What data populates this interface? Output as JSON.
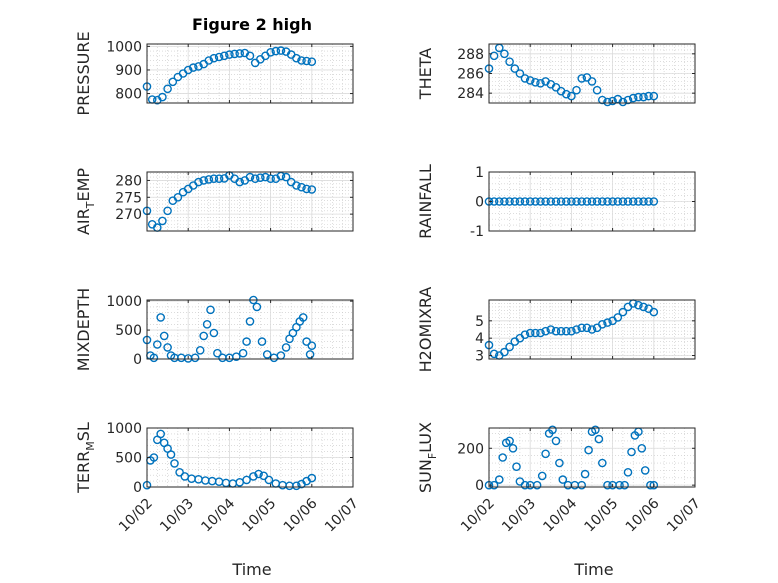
{
  "figure": {
    "title": "Figure 2 high",
    "xlabel": "Time",
    "date_ticks": [
      "10/02",
      "10/03",
      "10/04",
      "10/05",
      "10/06",
      "10/07"
    ],
    "marker_color": "#0072BD",
    "marker": "circle-open"
  },
  "chart_data": [
    {
      "type": "scatter",
      "ylabel": "PRESSURE",
      "title": "Figure 2 high",
      "xlim": [
        "10/02",
        "10/07"
      ],
      "ylim": [
        760,
        1010
      ],
      "yticks": [
        800,
        900,
        1000
      ],
      "grid": true,
      "minor_grid": true,
      "x": [
        "10/02 00:00",
        "10/02 03:00",
        "10/02 06:00",
        "10/02 09:00",
        "10/02 12:00",
        "10/02 15:00",
        "10/02 18:00",
        "10/02 21:00",
        "10/03 00:00",
        "10/03 03:00",
        "10/03 06:00",
        "10/03 09:00",
        "10/03 12:00",
        "10/03 15:00",
        "10/03 18:00",
        "10/03 21:00",
        "10/04 00:00",
        "10/04 03:00",
        "10/04 06:00",
        "10/04 09:00",
        "10/04 12:00",
        "10/04 15:00",
        "10/04 18:00",
        "10/04 21:00",
        "10/05 00:00",
        "10/05 03:00",
        "10/05 06:00",
        "10/05 09:00",
        "10/05 12:00",
        "10/05 15:00",
        "10/05 18:00",
        "10/05 21:00",
        "10/06 00:00"
      ],
      "y": [
        830,
        775,
        772,
        785,
        820,
        850,
        870,
        885,
        900,
        910,
        915,
        925,
        940,
        950,
        955,
        960,
        965,
        968,
        970,
        972,
        960,
        930,
        945,
        960,
        975,
        980,
        982,
        978,
        965,
        950,
        940,
        938,
        935
      ]
    },
    {
      "type": "scatter",
      "ylabel": "THETA",
      "xlim": [
        "10/02",
        "10/07"
      ],
      "ylim": [
        283.0,
        289.0
      ],
      "yticks": [
        284,
        286,
        288
      ],
      "grid": true,
      "minor_grid": true,
      "x": [
        "10/02 00:00",
        "10/02 03:00",
        "10/02 06:00",
        "10/02 09:00",
        "10/02 12:00",
        "10/02 15:00",
        "10/02 18:00",
        "10/02 21:00",
        "10/03 00:00",
        "10/03 03:00",
        "10/03 06:00",
        "10/03 09:00",
        "10/03 12:00",
        "10/03 15:00",
        "10/03 18:00",
        "10/03 21:00",
        "10/04 00:00",
        "10/04 03:00",
        "10/04 06:00",
        "10/04 09:00",
        "10/04 12:00",
        "10/04 15:00",
        "10/04 18:00",
        "10/04 21:00",
        "10/05 00:00",
        "10/05 03:00",
        "10/05 06:00",
        "10/05 09:00",
        "10/05 12:00",
        "10/05 15:00",
        "10/05 18:00",
        "10/05 21:00",
        "10/06 00:00"
      ],
      "y": [
        286.5,
        287.8,
        288.6,
        288.0,
        287.2,
        286.5,
        286.0,
        285.5,
        285.3,
        285.1,
        285.0,
        285.2,
        284.9,
        284.6,
        284.2,
        283.9,
        283.7,
        284.3,
        285.5,
        285.6,
        285.2,
        284.3,
        283.3,
        283.1,
        283.2,
        283.4,
        283.1,
        283.3,
        283.5,
        283.6,
        283.6,
        283.7,
        283.7
      ]
    },
    {
      "type": "scatter",
      "ylabel": "AIR_TEMP",
      "xlim": [
        "10/02",
        "10/07"
      ],
      "ylim": [
        265,
        282.5
      ],
      "yticks": [
        270,
        275,
        280
      ],
      "grid": true,
      "minor_grid": true,
      "x": [
        "10/02 00:00",
        "10/02 03:00",
        "10/02 06:00",
        "10/02 09:00",
        "10/02 12:00",
        "10/02 15:00",
        "10/02 18:00",
        "10/02 21:00",
        "10/03 00:00",
        "10/03 03:00",
        "10/03 06:00",
        "10/03 09:00",
        "10/03 12:00",
        "10/03 15:00",
        "10/03 18:00",
        "10/03 21:00",
        "10/04 00:00",
        "10/04 03:00",
        "10/04 06:00",
        "10/04 09:00",
        "10/04 12:00",
        "10/04 15:00",
        "10/04 18:00",
        "10/04 21:00",
        "10/05 00:00",
        "10/05 03:00",
        "10/05 06:00",
        "10/05 09:00",
        "10/05 12:00",
        "10/05 15:00",
        "10/05 18:00",
        "10/05 21:00",
        "10/06 00:00"
      ],
      "y": [
        271,
        267,
        266,
        268,
        271,
        274,
        275,
        276.5,
        277.5,
        278.5,
        279.5,
        280,
        280.3,
        280.5,
        280.5,
        280.6,
        281.5,
        280.5,
        279.5,
        280,
        281,
        280.5,
        280.8,
        281,
        280.5,
        280.5,
        281.3,
        281,
        279.5,
        278.5,
        278,
        277.5,
        277.3
      ]
    },
    {
      "type": "scatter",
      "ylabel": "RAINFALL",
      "xlim": [
        "10/02",
        "10/07"
      ],
      "ylim": [
        -1,
        1
      ],
      "yticks": [
        -1,
        0,
        1
      ],
      "grid": true,
      "minor_grid": true,
      "x": [
        "10/02 00:00",
        "10/02 03:00",
        "10/02 06:00",
        "10/02 09:00",
        "10/02 12:00",
        "10/02 15:00",
        "10/02 18:00",
        "10/02 21:00",
        "10/03 00:00",
        "10/03 03:00",
        "10/03 06:00",
        "10/03 09:00",
        "10/03 12:00",
        "10/03 15:00",
        "10/03 18:00",
        "10/03 21:00",
        "10/04 00:00",
        "10/04 03:00",
        "10/04 06:00",
        "10/04 09:00",
        "10/04 12:00",
        "10/04 15:00",
        "10/04 18:00",
        "10/04 21:00",
        "10/05 00:00",
        "10/05 03:00",
        "10/05 06:00",
        "10/05 09:00",
        "10/05 12:00",
        "10/05 15:00",
        "10/05 18:00",
        "10/05 21:00",
        "10/06 00:00"
      ],
      "y": [
        0,
        0,
        0,
        0,
        0,
        0,
        0,
        0,
        0,
        0,
        0,
        0,
        0,
        0,
        0,
        0,
        0,
        0,
        0,
        0,
        0,
        0,
        0,
        0,
        0,
        0,
        0,
        0,
        0,
        0,
        0,
        0,
        0
      ]
    },
    {
      "type": "scatter",
      "ylabel": "MIXDEPTH",
      "xlim": [
        "10/02",
        "10/07"
      ],
      "ylim": [
        0,
        1020
      ],
      "yticks": [
        0,
        500,
        1000
      ],
      "grid": true,
      "minor_grid": true,
      "x": [
        "10/02 00:00",
        "10/02 02:00",
        "10/02 04:00",
        "10/02 06:00",
        "10/02 08:00",
        "10/02 10:00",
        "10/02 12:00",
        "10/02 14:00",
        "10/02 16:00",
        "10/02 20:00",
        "10/03 00:00",
        "10/03 04:00",
        "10/03 07:00",
        "10/03 09:00",
        "10/03 11:00",
        "10/03 13:00",
        "10/03 15:00",
        "10/03 17:00",
        "10/03 20:00",
        "10/04 00:00",
        "10/04 04:00",
        "10/04 08:00",
        "10/04 10:00",
        "10/04 12:00",
        "10/04 14:00",
        "10/04 16:00",
        "10/04 19:00",
        "10/04 22:00",
        "10/05 02:00",
        "10/05 06:00",
        "10/05 09:00",
        "10/05 11:00",
        "10/05 13:00",
        "10/05 15:00",
        "10/05 17:00",
        "10/05 19:00",
        "10/05 21:00",
        "10/05 23:00",
        "10/06 00:00"
      ],
      "y": [
        330,
        60,
        20,
        250,
        720,
        400,
        200,
        60,
        20,
        20,
        10,
        20,
        150,
        400,
        600,
        850,
        450,
        100,
        20,
        20,
        40,
        100,
        300,
        650,
        1020,
        900,
        300,
        80,
        20,
        60,
        200,
        350,
        450,
        550,
        650,
        720,
        300,
        80,
        230
      ]
    },
    {
      "type": "scatter",
      "ylabel": "H2OMIXRA",
      "xlim": [
        "10/02",
        "10/07"
      ],
      "ylim": [
        2.8,
        6.2
      ],
      "yticks": [
        3,
        4,
        5
      ],
      "grid": true,
      "minor_grid": true,
      "x": [
        "10/02 00:00",
        "10/02 03:00",
        "10/02 06:00",
        "10/02 09:00",
        "10/02 12:00",
        "10/02 15:00",
        "10/02 18:00",
        "10/02 21:00",
        "10/03 00:00",
        "10/03 03:00",
        "10/03 06:00",
        "10/03 09:00",
        "10/03 12:00",
        "10/03 15:00",
        "10/03 18:00",
        "10/03 21:00",
        "10/04 00:00",
        "10/04 03:00",
        "10/04 06:00",
        "10/04 09:00",
        "10/04 12:00",
        "10/04 15:00",
        "10/04 18:00",
        "10/04 21:00",
        "10/05 00:00",
        "10/05 03:00",
        "10/05 06:00",
        "10/05 09:00",
        "10/05 12:00",
        "10/05 15:00",
        "10/05 18:00",
        "10/05 21:00",
        "10/06 00:00"
      ],
      "y": [
        3.6,
        3.1,
        3.0,
        3.2,
        3.5,
        3.8,
        4.0,
        4.2,
        4.3,
        4.3,
        4.3,
        4.4,
        4.5,
        4.4,
        4.4,
        4.4,
        4.4,
        4.5,
        4.6,
        4.6,
        4.5,
        4.6,
        4.8,
        4.9,
        5.0,
        5.2,
        5.5,
        5.8,
        6.0,
        5.9,
        5.8,
        5.7,
        5.5
      ]
    },
    {
      "type": "scatter",
      "ylabel": "TERR_MSL",
      "xlim": [
        "10/02",
        "10/07"
      ],
      "ylim": [
        0,
        1000
      ],
      "yticks": [
        0,
        500,
        1000
      ],
      "grid": true,
      "minor_grid": true,
      "x": [
        "10/02 00:00",
        "10/02 02:00",
        "10/02 04:00",
        "10/02 06:00",
        "10/02 08:00",
        "10/02 10:00",
        "10/02 12:00",
        "10/02 14:00",
        "10/02 16:00",
        "10/02 19:00",
        "10/02 22:00",
        "10/03 02:00",
        "10/03 06:00",
        "10/03 10:00",
        "10/03 14:00",
        "10/03 18:00",
        "10/03 22:00",
        "10/04 02:00",
        "10/04 06:00",
        "10/04 10:00",
        "10/04 14:00",
        "10/04 17:00",
        "10/04 20:00",
        "10/04 23:00",
        "10/05 03:00",
        "10/05 07:00",
        "10/05 11:00",
        "10/05 15:00",
        "10/05 18:00",
        "10/05 21:00",
        "10/06 00:00"
      ],
      "y": [
        30,
        450,
        500,
        800,
        900,
        750,
        650,
        550,
        400,
        250,
        180,
        140,
        130,
        110,
        100,
        90,
        70,
        60,
        80,
        120,
        180,
        220,
        190,
        120,
        60,
        30,
        20,
        20,
        50,
        100,
        150
      ]
    },
    {
      "type": "scatter",
      "ylabel": "SUN_FLUX",
      "xlim": [
        "10/02",
        "10/07"
      ],
      "ylim": [
        -10,
        310
      ],
      "yticks": [
        0,
        200
      ],
      "grid": true,
      "minor_grid": true,
      "x": [
        "10/02 00:00",
        "10/02 03:00",
        "10/02 06:00",
        "10/02 08:00",
        "10/02 10:00",
        "10/02 12:00",
        "10/02 14:00",
        "10/02 16:00",
        "10/02 18:00",
        "10/02 21:00",
        "10/03 00:00",
        "10/03 04:00",
        "10/03 07:00",
        "10/03 09:00",
        "10/03 11:00",
        "10/03 13:00",
        "10/03 15:00",
        "10/03 17:00",
        "10/03 19:00",
        "10/03 22:00",
        "10/04 02:00",
        "10/04 06:00",
        "10/04 08:00",
        "10/04 10:00",
        "10/04 12:00",
        "10/04 14:00",
        "10/04 16:00",
        "10/04 18:00",
        "10/04 21:00",
        "10/05 00:00",
        "10/05 04:00",
        "10/05 07:00",
        "10/05 09:00",
        "10/05 11:00",
        "10/05 13:00",
        "10/05 15:00",
        "10/05 17:00",
        "10/05 19:00",
        "10/05 22:00",
        "10/06 00:00"
      ],
      "y": [
        0,
        0,
        30,
        150,
        230,
        240,
        200,
        100,
        20,
        0,
        0,
        0,
        50,
        170,
        280,
        300,
        240,
        120,
        30,
        0,
        0,
        0,
        60,
        190,
        290,
        300,
        250,
        120,
        0,
        0,
        0,
        0,
        70,
        180,
        270,
        290,
        200,
        80,
        0,
        0
      ]
    }
  ]
}
